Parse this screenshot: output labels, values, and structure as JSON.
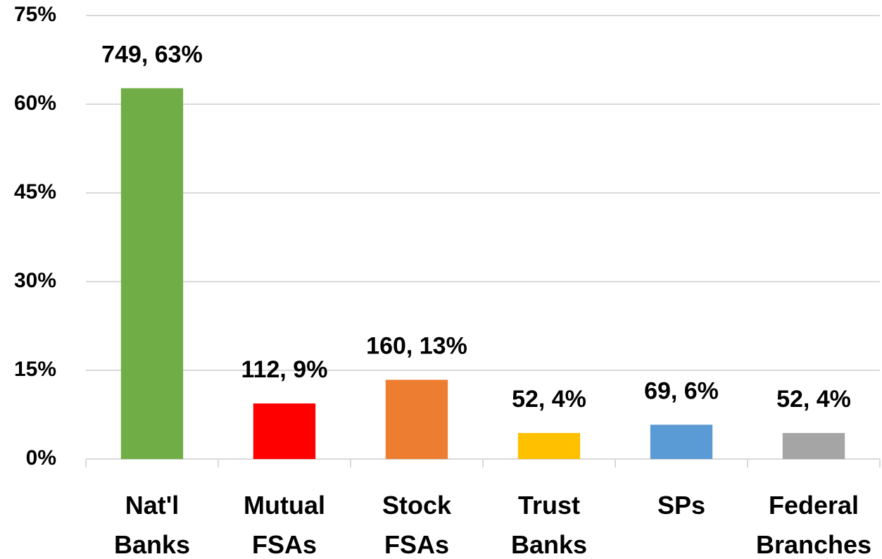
{
  "chart_data": {
    "type": "bar",
    "categories": [
      "Nat'l Banks",
      "Mutual FSAs",
      "Stock FSAs",
      "Trust Banks",
      "SPs",
      "Federal Branches"
    ],
    "values": [
      62.7,
      9.4,
      13.4,
      4.4,
      5.8,
      4.4
    ],
    "value_labels": [
      "749, 63%",
      "112, 9%",
      "160, 13%",
      "52, 4%",
      "69, 6%",
      "52, 4%"
    ],
    "colors": [
      "#70ad47",
      "#ff0000",
      "#ed7d31",
      "#ffc000",
      "#5b9bd5",
      "#a5a5a5"
    ],
    "ylim": [
      0,
      75
    ],
    "yticks": [
      {
        "value": 0,
        "label": "0%"
      },
      {
        "value": 15,
        "label": "15%"
      },
      {
        "value": 30,
        "label": "30%"
      },
      {
        "value": 45,
        "label": "45%"
      },
      {
        "value": 60,
        "label": "60%"
      },
      {
        "value": 75,
        "label": "75%"
      }
    ],
    "grid": true
  }
}
